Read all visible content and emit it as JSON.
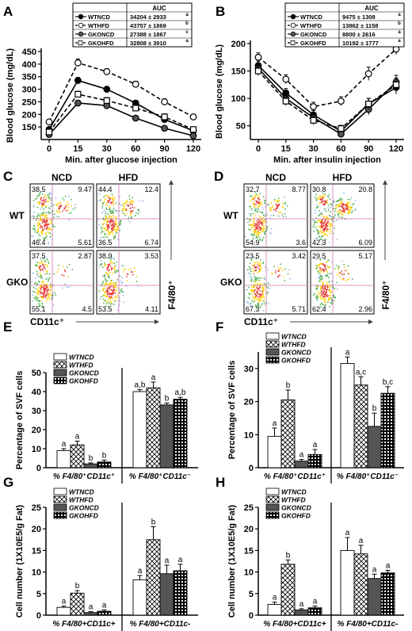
{
  "panels": {
    "A": "A",
    "B": "B",
    "C": "C",
    "D": "D",
    "E": "E",
    "F": "F",
    "G": "G",
    "H": "H"
  },
  "colors": {
    "wtncd": "#000000",
    "wthfd": "#ffffff",
    "gkoncd": "#555555",
    "gkohfd": "#000000",
    "gate_line": "#d070b0",
    "flow_low": "#8fb3e8",
    "flow_mid": "#4caf50",
    "flow_high": "#ffd000",
    "flow_peak": "#e53935"
  },
  "icons": {
    "y_axis_arrow": "up-arrow-icon",
    "x_axis_arrow": "right-arrow-icon"
  },
  "flow": {
    "C": {
      "col_labels": [
        "NCD",
        "HFD"
      ],
      "row_labels": [
        "WT",
        "GKO"
      ],
      "plots": [
        [
          "38.5",
          "9.47",
          "46.4",
          "5.61"
        ],
        [
          "44.4",
          "12.4",
          "36.5",
          "6.74"
        ],
        [
          "37.5",
          "2.87",
          "55.1",
          "4.5"
        ],
        [
          "38.9",
          "3.53",
          "53.5",
          "4.11"
        ]
      ],
      "x_axis": "CD11c⁺",
      "y_axis": "F4/80⁺"
    },
    "D": {
      "col_labels": [
        "NCD",
        "HFD"
      ],
      "row_labels": [
        "WT",
        "GKO"
      ],
      "plots": [
        [
          "32.7",
          "8.77",
          "54.9",
          "3.6"
        ],
        [
          "30.8",
          "20.8",
          "42.3",
          "6.09"
        ],
        [
          "23.5",
          "3.42",
          "67.3",
          "5.71"
        ],
        [
          "29.5",
          "5.17",
          "62.4",
          "2.96"
        ]
      ],
      "x_axis": "CD11c⁺",
      "y_axis": "F4/80⁺"
    }
  },
  "chart_data": [
    {
      "panel": "A",
      "type": "line",
      "xlabel": "Min. after glucose injection",
      "ylabel": "Blood glucose (mg/dL)",
      "x": [
        0,
        15,
        30,
        60,
        90,
        120
      ],
      "ylim": [
        100,
        450
      ],
      "yticks": [
        150,
        200,
        250,
        300,
        350,
        400,
        450
      ],
      "legend": {
        "header": "AUC",
        "entries": [
          {
            "name": "WTNCD",
            "auc": "34204 ± 2933",
            "sup": "a"
          },
          {
            "name": "WTHFD",
            "auc": "43757 ± 1869",
            "sup": "b"
          },
          {
            "name": "GKONCD",
            "auc": "27388 ± 1867",
            "sup": "c"
          },
          {
            "name": "GKOHFD",
            "auc": "32808 ± 3910",
            "sup": "a"
          }
        ]
      },
      "series": [
        {
          "name": "WTNCD",
          "values": [
            140,
            335,
            300,
            245,
            180,
            135
          ],
          "errors": [
            8,
            12,
            10,
            10,
            10,
            8
          ]
        },
        {
          "name": "WTHFD",
          "values": [
            170,
            405,
            370,
            320,
            250,
            190
          ],
          "errors": [
            8,
            15,
            12,
            12,
            12,
            10
          ]
        },
        {
          "name": "GKONCD",
          "values": [
            120,
            245,
            235,
            185,
            145,
            115
          ],
          "errors": [
            6,
            10,
            10,
            10,
            8,
            6
          ]
        },
        {
          "name": "GKOHFD",
          "values": [
            130,
            280,
            255,
            225,
            190,
            140
          ],
          "errors": [
            8,
            12,
            12,
            10,
            12,
            10
          ]
        }
      ]
    },
    {
      "panel": "B",
      "type": "line",
      "xlabel": "Min. after insulin injection",
      "ylabel": "Blood glucose (mg/dL)",
      "x": [
        0,
        15,
        30,
        60,
        90,
        120
      ],
      "ylim": [
        25,
        200
      ],
      "yticks": [
        50,
        100,
        150,
        200
      ],
      "legend": {
        "header": "AUC",
        "entries": [
          {
            "name": "WTNCD",
            "auc": "9475 ± 1308",
            "sup": "a"
          },
          {
            "name": "WTHFD",
            "auc": "13862 ± 1158",
            "sup": "b"
          },
          {
            "name": "GKONCD",
            "auc": "8800 ± 2616",
            "sup": "a"
          },
          {
            "name": "GKOHFD",
            "auc": "10192 ± 1777",
            "sup": "a"
          }
        ]
      },
      "series": [
        {
          "name": "WTNCD",
          "values": [
            160,
            110,
            70,
            40,
            90,
            120
          ],
          "errors": [
            8,
            8,
            8,
            5,
            10,
            12
          ]
        },
        {
          "name": "WTHFD",
          "values": [
            175,
            135,
            85,
            95,
            145,
            190
          ],
          "errors": [
            8,
            8,
            8,
            8,
            12,
            10
          ]
        },
        {
          "name": "GKONCD",
          "values": [
            155,
            100,
            65,
            35,
            80,
            130
          ],
          "errors": [
            8,
            8,
            8,
            5,
            10,
            12
          ]
        },
        {
          "name": "GKOHFD",
          "values": [
            150,
            95,
            60,
            45,
            90,
            125
          ],
          "errors": [
            8,
            8,
            8,
            6,
            10,
            12
          ]
        }
      ]
    },
    {
      "panel": "E",
      "type": "bar",
      "ylabel": "Percentage of SVF cells",
      "ylim": [
        0,
        50
      ],
      "yticks": [
        0,
        10,
        20,
        30,
        40,
        50
      ],
      "categories": [
        "% F4/80⁺CD11c⁺",
        "% F4/80⁺CD11c⁻"
      ],
      "legend": [
        "WTNCD",
        "WTHFD",
        "GKONCD",
        "GKOHFD"
      ],
      "series": [
        {
          "name": "WTNCD",
          "values": [
            9,
            40
          ],
          "errors": [
            1,
            1
          ],
          "letters": [
            "a",
            "a,b"
          ]
        },
        {
          "name": "WTHFD",
          "values": [
            12,
            42
          ],
          "errors": [
            2,
            3
          ],
          "letters": [
            "a",
            "a"
          ]
        },
        {
          "name": "GKONCD",
          "values": [
            2,
            33
          ],
          "errors": [
            0.5,
            1
          ],
          "letters": [
            "b",
            "b"
          ]
        },
        {
          "name": "GKOHFD",
          "values": [
            3,
            36
          ],
          "errors": [
            1,
            1
          ],
          "letters": [
            "b",
            "a,b"
          ]
        }
      ]
    },
    {
      "panel": "F",
      "type": "bar",
      "ylabel": "Percentage of SVF cells",
      "ylim": [
        0,
        35
      ],
      "yticks": [
        0,
        10,
        20,
        30
      ],
      "categories": [
        "% F4/80⁺CD11c⁺",
        "% F4/80⁺CD11c⁻"
      ],
      "legend": [
        "WTNCD",
        "WTHFD",
        "GKONCD",
        "GKOHFD"
      ],
      "series": [
        {
          "name": "WTNCD",
          "values": [
            9.5,
            31.5
          ],
          "errors": [
            2.5,
            2
          ],
          "letters": [
            "a",
            "a"
          ]
        },
        {
          "name": "WTHFD",
          "values": [
            20.5,
            25
          ],
          "errors": [
            3,
            2.5
          ],
          "letters": [
            "b",
            "a,c"
          ]
        },
        {
          "name": "GKONCD",
          "values": [
            2,
            12.5
          ],
          "errors": [
            0.5,
            4
          ],
          "letters": [
            "a",
            "b"
          ]
        },
        {
          "name": "GKOHFD",
          "values": [
            4,
            22.5
          ],
          "errors": [
            1.5,
            2
          ],
          "letters": [
            "a",
            "b,c"
          ]
        }
      ]
    },
    {
      "panel": "G",
      "type": "bar",
      "ylabel": "Cell number (1X10E5/g Fat)",
      "ylim": [
        0,
        25
      ],
      "yticks": [
        0,
        5,
        10,
        15,
        20,
        25
      ],
      "categories": [
        "% F4/80+CD11c+",
        "% F4/80+CD11c-"
      ],
      "legend": [
        "WTNCD",
        "WTHFD",
        "GKONCD",
        "GKOHFD"
      ],
      "series": [
        {
          "name": "WTNCD",
          "values": [
            1.8,
            8.2
          ],
          "errors": [
            0.3,
            1
          ],
          "letters": [
            "a",
            "a"
          ]
        },
        {
          "name": "WTHFD",
          "values": [
            5.1,
            17.5
          ],
          "errors": [
            0.6,
            3
          ],
          "letters": [
            "b",
            "b"
          ]
        },
        {
          "name": "GKONCD",
          "values": [
            0.6,
            9.6
          ],
          "errors": [
            0.2,
            2
          ],
          "letters": [
            "a",
            "a"
          ]
        },
        {
          "name": "GKOHFD",
          "values": [
            0.9,
            10.3
          ],
          "errors": [
            0.3,
            1.5
          ],
          "letters": [
            "a",
            "a"
          ]
        }
      ]
    },
    {
      "panel": "H",
      "type": "bar",
      "ylabel": "Cell number (1X10E5/g Fat)",
      "ylim": [
        0,
        25
      ],
      "yticks": [
        0,
        5,
        10,
        15,
        20,
        25
      ],
      "categories": [
        "% F4/80+CD11c+",
        "% F4/80+CD11c-"
      ],
      "legend": [
        "WTNCD",
        "WTHFD",
        "GKONCD",
        "GKOHFD"
      ],
      "series": [
        {
          "name": "WTNCD",
          "values": [
            2.5,
            15
          ],
          "errors": [
            0.5,
            3
          ],
          "letters": [
            "a",
            "a"
          ]
        },
        {
          "name": "WTHFD",
          "values": [
            11.8,
            14.2
          ],
          "errors": [
            1,
            2
          ],
          "letters": [
            "b",
            "a"
          ]
        },
        {
          "name": "GKONCD",
          "values": [
            1.2,
            8.5
          ],
          "errors": [
            0.3,
            1
          ],
          "letters": [
            "a",
            "a"
          ]
        },
        {
          "name": "GKOHFD",
          "values": [
            1.7,
            9.8
          ],
          "errors": [
            0.4,
            0.6
          ],
          "letters": [
            "a",
            "a"
          ]
        }
      ]
    }
  ]
}
